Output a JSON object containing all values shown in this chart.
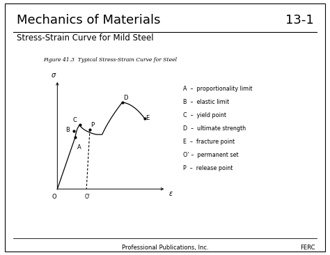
{
  "title_main": "Mechanics of Materials",
  "title_number": "13-1",
  "subtitle": "Stress-Strain Curve for Mild Steel",
  "figure_caption": "Figure 41.3  Typical Stress-Strain Curve for Steel",
  "footer_left": "Professional Publications, Inc.",
  "footer_right": "FERC",
  "legend_items": [
    "A  –  proportionality limit",
    "B  –  elastic limit",
    "C  –  yield point",
    "D  –  ultimate strength",
    "E  –  fracture point",
    "O’ –  permanent set",
    "P  –  release point"
  ],
  "curve_color": "#000000",
  "bg_color": "#ffffff",
  "border_color": "#000000",
  "text_color": "#000000",
  "title_fontsize": 13,
  "subtitle_fontsize": 8.5,
  "caption_fontsize": 5.5,
  "legend_fontsize": 5.8,
  "footer_fontsize": 6,
  "point_label_fontsize": 6,
  "axis_label_fontsize": 7
}
